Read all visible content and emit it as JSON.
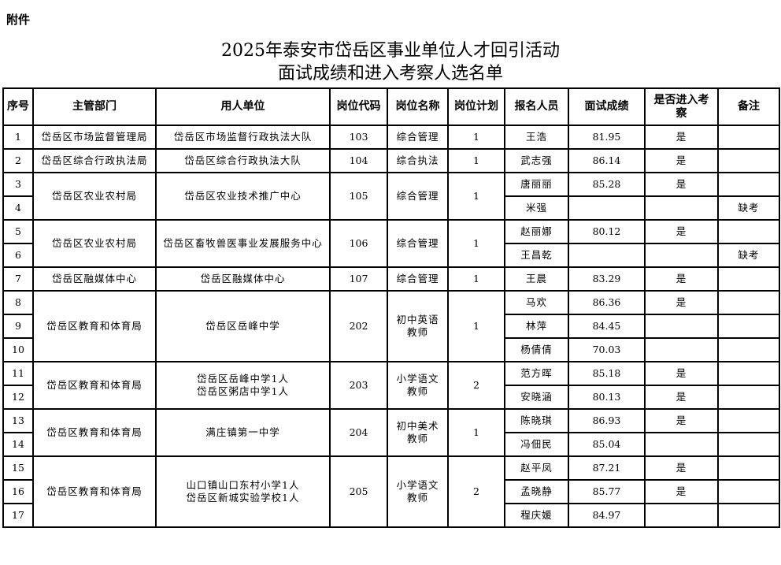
{
  "attachment_label": "附件",
  "title_line1": "2025年泰安市岱岳区事业单位人才回引活动",
  "title_line2": "面试成绩和进入考察人选名单",
  "headers": [
    "序号",
    "主管部门",
    "用人单位",
    "岗位代码",
    "岗位名称",
    "岗位计划",
    "报名人员",
    "面试成绩",
    "是否进入考察",
    "备注"
  ],
  "groups": [
    {
      "dept": "岱岳区市场监督管理局",
      "unit": "岱岳区市场监督行政执法大队",
      "code": "103",
      "post": "综合管理",
      "plan": "1",
      "people": [
        {
          "no": "1",
          "name": "王浩",
          "score": "81.95",
          "pass": "是",
          "note": ""
        }
      ]
    },
    {
      "dept": "岱岳区综合行政执法局",
      "unit": "岱岳区综合行政执法大队",
      "code": "104",
      "post": "综合执法",
      "plan": "1",
      "people": [
        {
          "no": "2",
          "name": "武志强",
          "score": "86.14",
          "pass": "是",
          "note": ""
        }
      ]
    },
    {
      "dept": "岱岳区农业农村局",
      "unit": "岱岳区农业技术推广中心",
      "code": "105",
      "post": "综合管理",
      "plan": "1",
      "people": [
        {
          "no": "3",
          "name": "唐丽丽",
          "score": "85.28",
          "pass": "是",
          "note": ""
        },
        {
          "no": "4",
          "name": "米强",
          "score": "",
          "pass": "",
          "note": "缺考"
        }
      ]
    },
    {
      "dept": "岱岳区农业农村局",
      "unit": "岱岳区畜牧兽医事业发展服务中心",
      "code": "106",
      "post": "综合管理",
      "plan": "1",
      "people": [
        {
          "no": "5",
          "name": "赵丽娜",
          "score": "80.12",
          "pass": "是",
          "note": ""
        },
        {
          "no": "6",
          "name": "王昌乾",
          "score": "",
          "pass": "",
          "note": "缺考"
        }
      ]
    },
    {
      "dept": "岱岳区融媒体中心",
      "unit": "岱岳区融媒体中心",
      "code": "107",
      "post": "综合管理",
      "plan": "1",
      "people": [
        {
          "no": "7",
          "name": "王晨",
          "score": "83.29",
          "pass": "是",
          "note": ""
        }
      ]
    },
    {
      "dept": "岱岳区教育和体育局",
      "unit": "岱岳区岳峰中学",
      "code": "202",
      "post": "初中英语教师",
      "plan": "1",
      "people": [
        {
          "no": "8",
          "name": "马欢",
          "score": "86.36",
          "pass": "是",
          "note": ""
        },
        {
          "no": "9",
          "name": "林萍",
          "score": "84.45",
          "pass": "",
          "note": ""
        },
        {
          "no": "10",
          "name": "杨倩倩",
          "score": "70.03",
          "pass": "",
          "note": ""
        }
      ]
    },
    {
      "dept": "岱岳区教育和体育局",
      "unit": "岱岳区岳峰中学1人\n岱岳区粥店中学1人",
      "code": "203",
      "post": "小学语文教师",
      "plan": "2",
      "people": [
        {
          "no": "11",
          "name": "范方晖",
          "score": "85.18",
          "pass": "是",
          "note": ""
        },
        {
          "no": "12",
          "name": "安晓涵",
          "score": "80.13",
          "pass": "是",
          "note": ""
        }
      ]
    },
    {
      "dept": "岱岳区教育和体育局",
      "unit": "满庄镇第一中学",
      "code": "204",
      "post": "初中美术教师",
      "plan": "1",
      "people": [
        {
          "no": "13",
          "name": "陈晓琪",
          "score": "86.93",
          "pass": "是",
          "note": ""
        },
        {
          "no": "14",
          "name": "冯佃民",
          "score": "85.04",
          "pass": "",
          "note": ""
        }
      ]
    },
    {
      "dept": "岱岳区教育和体育局",
      "unit": "山口镇山口东村小学1人\n岱岳区新城实验学校1人",
      "code": "205",
      "post": "小学语文教师",
      "plan": "2",
      "people": [
        {
          "no": "15",
          "name": "赵平凤",
          "score": "87.21",
          "pass": "是",
          "note": ""
        },
        {
          "no": "16",
          "name": "孟晓静",
          "score": "85.77",
          "pass": "是",
          "note": ""
        },
        {
          "no": "17",
          "name": "程庆媛",
          "score": "84.97",
          "pass": "",
          "note": ""
        }
      ]
    }
  ]
}
